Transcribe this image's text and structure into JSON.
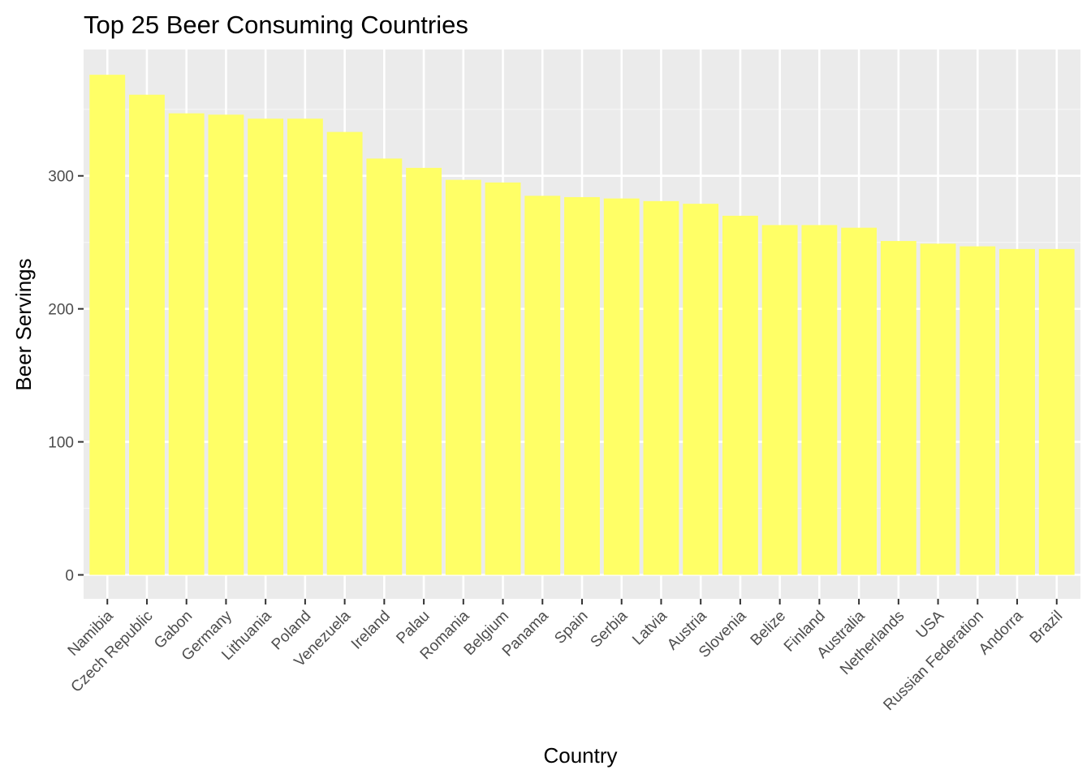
{
  "chart_data": {
    "type": "bar",
    "title": "Top 25 Beer Consuming Countries",
    "xlabel": "Country",
    "ylabel": "Beer Servings",
    "categories": [
      "Namibia",
      "Czech Republic",
      "Gabon",
      "Germany",
      "Lithuania",
      "Poland",
      "Venezuela",
      "Ireland",
      "Palau",
      "Romania",
      "Belgium",
      "Panama",
      "Spain",
      "Serbia",
      "Latvia",
      "Austria",
      "Slovenia",
      "Belize",
      "Finland",
      "Australia",
      "Netherlands",
      "USA",
      "Russian Federation",
      "Andorra",
      "Brazil"
    ],
    "values": [
      376,
      361,
      347,
      346,
      343,
      343,
      333,
      313,
      306,
      297,
      295,
      285,
      284,
      283,
      281,
      279,
      270,
      263,
      263,
      261,
      251,
      249,
      247,
      245,
      245
    ],
    "ylim": [
      -18,
      395
    ],
    "yticks": [
      0,
      100,
      200,
      300
    ],
    "grid": true,
    "legend": "none",
    "colors": {
      "bar": "#FFFF66",
      "panel": "#EBEBEB",
      "grid_major": "#FFFFFF",
      "grid_minor": "#F5F5F5"
    }
  }
}
